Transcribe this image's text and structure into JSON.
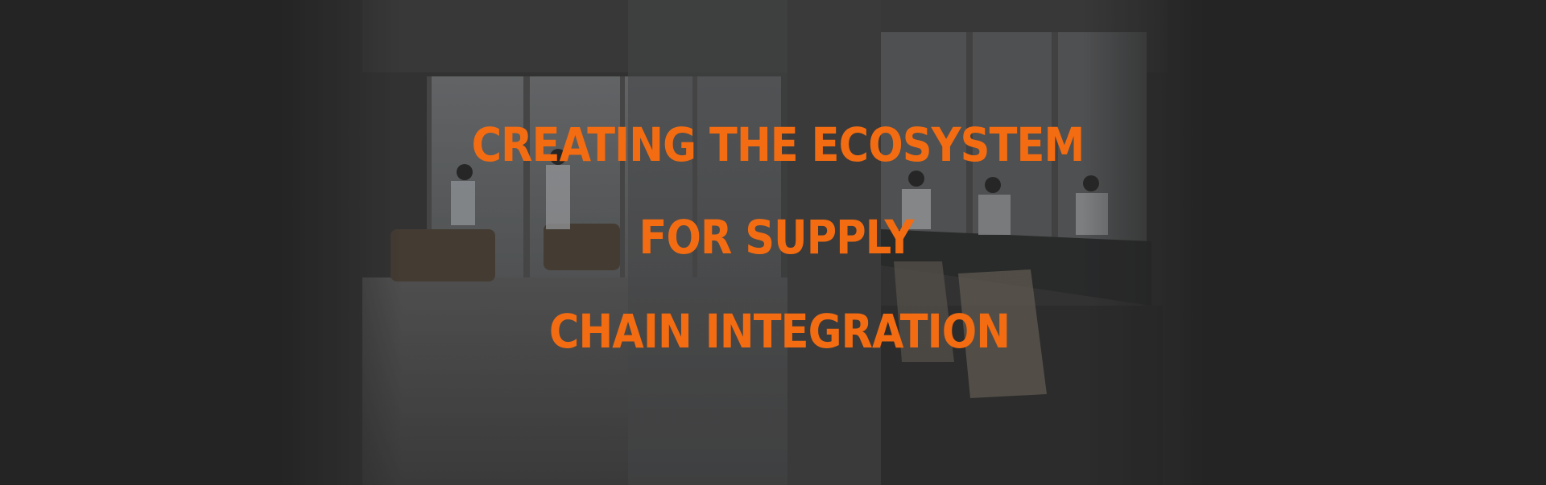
{
  "hero": {
    "headline_lines": [
      "CREATING THE ECOSYSTEM",
      "FOR SUPPLY",
      "CHAIN INTEGRATION"
    ],
    "accent_color": "#f36c12",
    "background_color": "#262626",
    "image_description_name": "office-meeting-room-photo"
  }
}
